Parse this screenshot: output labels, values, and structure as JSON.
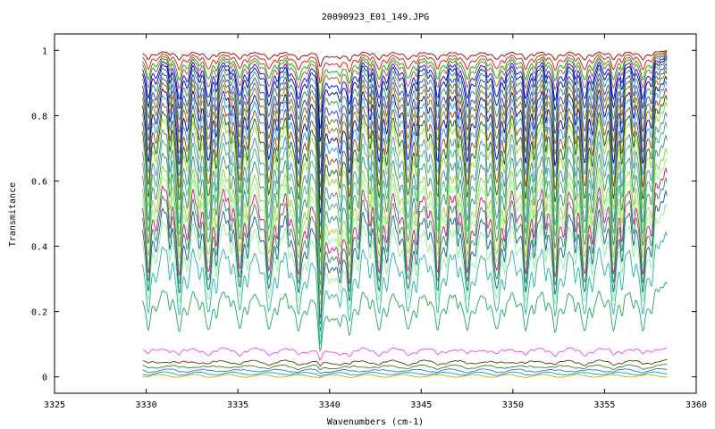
{
  "chart_data": {
    "type": "line",
    "title": "20090923_E01_149.JPG",
    "xlabel": "Wavenumbers (cm-1)",
    "ylabel": "Transmitance",
    "xlim": [
      3325,
      3360
    ],
    "ylim": [
      -0.05,
      1.05
    ],
    "x_ticks": [
      3325,
      3330,
      3335,
      3340,
      3345,
      3350,
      3355,
      3360
    ],
    "x_tick_labels": [
      "3325",
      "3330",
      "3335",
      "3340",
      "3345",
      "3350",
      "3355",
      "3360"
    ],
    "y_ticks": [
      0,
      0.2,
      0.4,
      0.6,
      0.8,
      1
    ],
    "y_tick_labels": [
      "0",
      "0.2",
      "0.4",
      "0.6",
      "0.8",
      "1"
    ],
    "data_x_range": [
      3329.8,
      3358.4
    ],
    "line_positions_cm1": [
      3330.1,
      3331.8,
      3333.4,
      3335.1,
      3336.7,
      3338.3,
      3341.1,
      3342.7,
      3344.3,
      3345.9,
      3347.5,
      3349.1,
      3350.7,
      3352.3,
      3353.9,
      3355.5,
      3357.1
    ],
    "strong_band_center_cm1": 3339.5,
    "grid": false,
    "series": [
      {
        "baseline": 1.0,
        "min_transmittance": 0.95,
        "color": "#8b0000"
      },
      {
        "baseline": 0.998,
        "min_transmittance": 0.9,
        "color": "#ff0000"
      },
      {
        "baseline": 0.996,
        "min_transmittance": 0.85,
        "color": "#00aa00"
      },
      {
        "baseline": 0.994,
        "min_transmittance": 0.81,
        "color": "#a0522d"
      },
      {
        "baseline": 0.99,
        "min_transmittance": 0.76,
        "color": "#0000ff"
      },
      {
        "baseline": 0.985,
        "min_transmittance": 0.72,
        "color": "#000080"
      },
      {
        "baseline": 0.98,
        "min_transmittance": 0.67,
        "color": "#2e8b57"
      },
      {
        "baseline": 0.97,
        "min_transmittance": 0.62,
        "color": "#3333cc"
      },
      {
        "baseline": 0.96,
        "min_transmittance": 0.58,
        "color": "#556b2f"
      },
      {
        "baseline": 0.95,
        "min_transmittance": 0.54,
        "color": "#8b6914"
      },
      {
        "baseline": 0.935,
        "min_transmittance": 0.5,
        "color": "#000080"
      },
      {
        "baseline": 0.92,
        "min_transmittance": 0.46,
        "color": "#1e90ff"
      },
      {
        "baseline": 0.9,
        "min_transmittance": 0.42,
        "color": "#8b4513"
      },
      {
        "baseline": 0.88,
        "min_transmittance": 0.38,
        "color": "#006400"
      },
      {
        "baseline": 0.86,
        "min_transmittance": 0.35,
        "color": "#9acd32"
      },
      {
        "baseline": 0.83,
        "min_transmittance": 0.31,
        "color": "#4682b4"
      },
      {
        "baseline": 0.8,
        "min_transmittance": 0.28,
        "color": "#3cb371"
      },
      {
        "baseline": 0.76,
        "min_transmittance": 0.25,
        "color": "#2f8f5f"
      },
      {
        "baseline": 0.72,
        "min_transmittance": 0.22,
        "color": "#9acd32"
      },
      {
        "baseline": 0.69,
        "min_transmittance": 0.2,
        "color": "#7fff7f"
      },
      {
        "baseline": 0.66,
        "min_transmittance": 0.18,
        "color": "#c71585"
      },
      {
        "baseline": 0.63,
        "min_transmittance": 0.16,
        "color": "#2e8b57"
      },
      {
        "baseline": 0.59,
        "min_transmittance": 0.14,
        "color": "#0b5f8a"
      },
      {
        "baseline": 0.55,
        "min_transmittance": 0.12,
        "color": "#90ee90"
      },
      {
        "baseline": 0.46,
        "min_transmittance": 0.1,
        "color": "#20b2aa"
      },
      {
        "baseline": 0.3,
        "min_transmittance": 0.08,
        "color": "#1aaa55"
      },
      {
        "baseline": 0.09,
        "min_transmittance": 0.05,
        "color": "#ee44ee"
      },
      {
        "baseline": 0.05,
        "min_transmittance": 0.03,
        "color": "#5a3a00"
      },
      {
        "baseline": 0.035,
        "min_transmittance": 0.02,
        "color": "#228b22"
      },
      {
        "baseline": 0.022,
        "min_transmittance": 0.012,
        "color": "#4169e1"
      },
      {
        "baseline": 0.012,
        "min_transmittance": 0.006,
        "color": "#00aaaa"
      },
      {
        "baseline": 0.004,
        "min_transmittance": 0.001,
        "color": "#ccaa00"
      }
    ]
  }
}
